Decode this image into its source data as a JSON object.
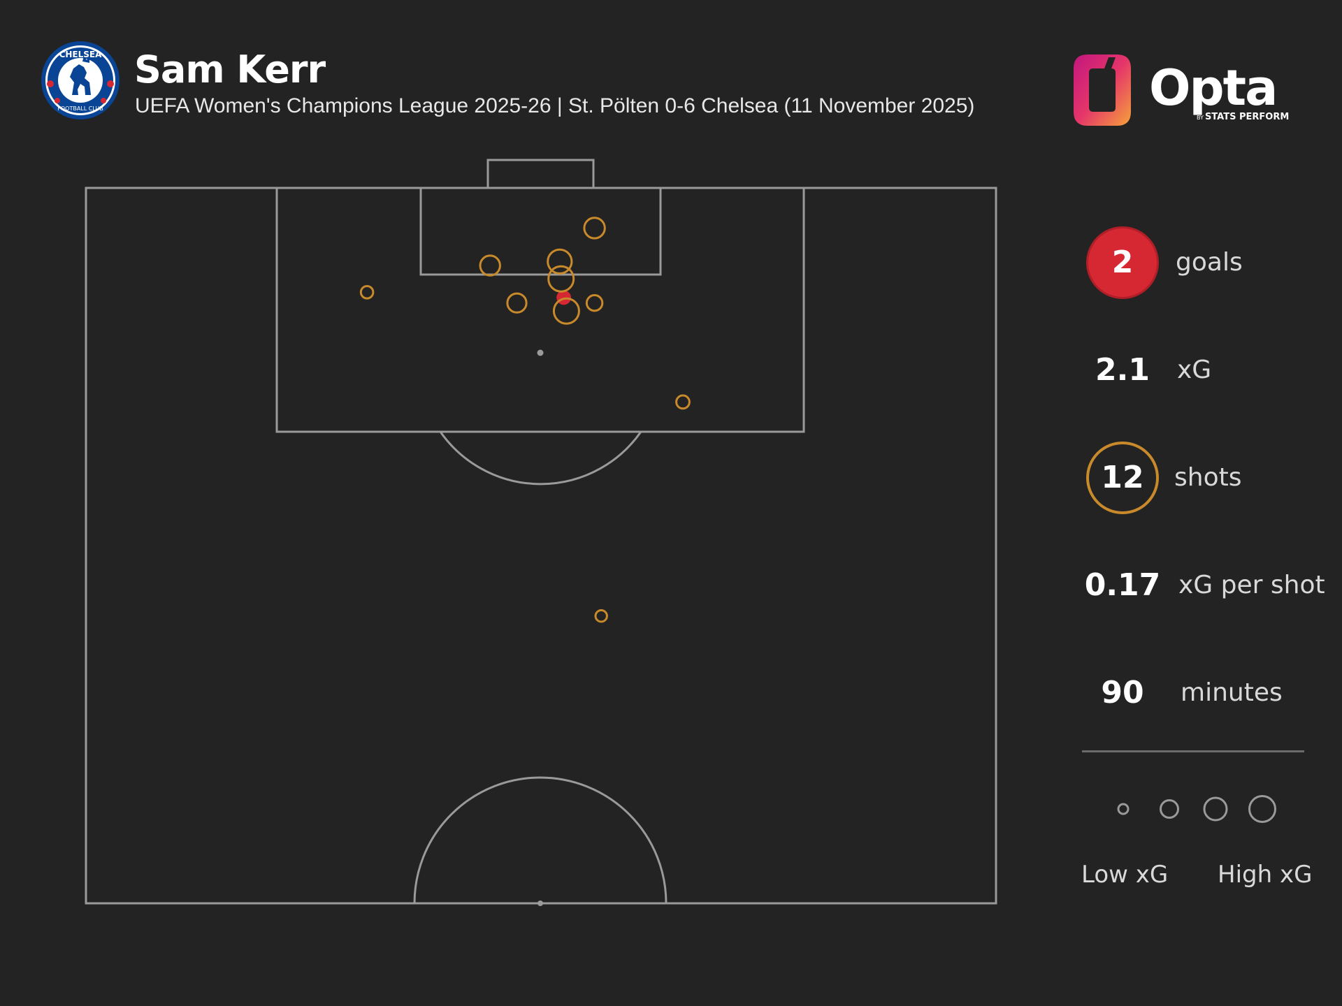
{
  "header": {
    "title": "Sam Kerr",
    "subtitle": "UEFA Women's Champions League 2025-26 | St. Pölten 0-6 Chelsea (11 November 2025)",
    "crest_icon": "chelsea-fc-crest-icon",
    "brand": {
      "name": "Opta",
      "tagline_prefix": "BY",
      "tagline": "STATS PERFORM",
      "icon": "opta-logo-icon"
    }
  },
  "stats": [
    {
      "value": "2",
      "label": "goals",
      "style": "filled-circle"
    },
    {
      "value": "2.1",
      "label": "xG",
      "style": "plain"
    },
    {
      "value": "12",
      "label": "shots",
      "style": "ring"
    },
    {
      "value": "0.17",
      "label": "xG per shot",
      "style": "plain"
    },
    {
      "value": "90",
      "label": "minutes",
      "style": "plain"
    }
  ],
  "legend": {
    "low_label": "Low xG",
    "high_label": "High xG",
    "steps": 4
  },
  "colors": {
    "background": "#232323",
    "pitch_lines": "#9a9a9a",
    "goal": "#d62832",
    "shot": "#c88a2b",
    "text": "#ffffff",
    "muted_text": "#d9d9d9"
  },
  "chart_data": {
    "type": "scatter",
    "title": "Sam Kerr",
    "subtitle": "UEFA Women's Champions League 2025-26 | St. Pölten 0-6 Chelsea (11 November 2025)",
    "xlabel": "",
    "ylabel": "",
    "note": "Shot map on a half pitch; x = distance across pitch from left touchline (m, 0-68), y = distance from goal line (m), circle size = xG",
    "xlim": [
      0,
      68
    ],
    "ylim": [
      0,
      53.5
    ],
    "series": [
      {
        "name": "goals",
        "points": [
          {
            "x": 35.7,
            "y": 8.2,
            "xg": 0.2,
            "outcome": "goal"
          },
          {
            "x": 35.7,
            "y": 8.2,
            "xg": 0.2,
            "outcome": "goal"
          }
        ]
      },
      {
        "name": "shots",
        "points": [
          {
            "x": 38.0,
            "y": 3.0,
            "xg": 0.2,
            "outcome": "no goal"
          },
          {
            "x": 30.2,
            "y": 5.8,
            "xg": 0.18,
            "outcome": "no goal"
          },
          {
            "x": 35.4,
            "y": 5.5,
            "xg": 0.3,
            "outcome": "no goal"
          },
          {
            "x": 35.5,
            "y": 6.8,
            "xg": 0.34,
            "outcome": "no goal"
          },
          {
            "x": 21.0,
            "y": 7.8,
            "xg": 0.04,
            "outcome": "no goal"
          },
          {
            "x": 32.2,
            "y": 8.6,
            "xg": 0.16,
            "outcome": "no goal"
          },
          {
            "x": 38.0,
            "y": 8.6,
            "xg": 0.09,
            "outcome": "no goal"
          },
          {
            "x": 35.9,
            "y": 9.2,
            "xg": 0.34,
            "outcome": "no goal"
          },
          {
            "x": 44.6,
            "y": 16.0,
            "xg": 0.05,
            "outcome": "no goal"
          },
          {
            "x": 38.5,
            "y": 32.0,
            "xg": 0.03,
            "outcome": "no goal"
          }
        ]
      }
    ],
    "penalty_spot": {
      "x": 34,
      "y": 12.3
    }
  }
}
